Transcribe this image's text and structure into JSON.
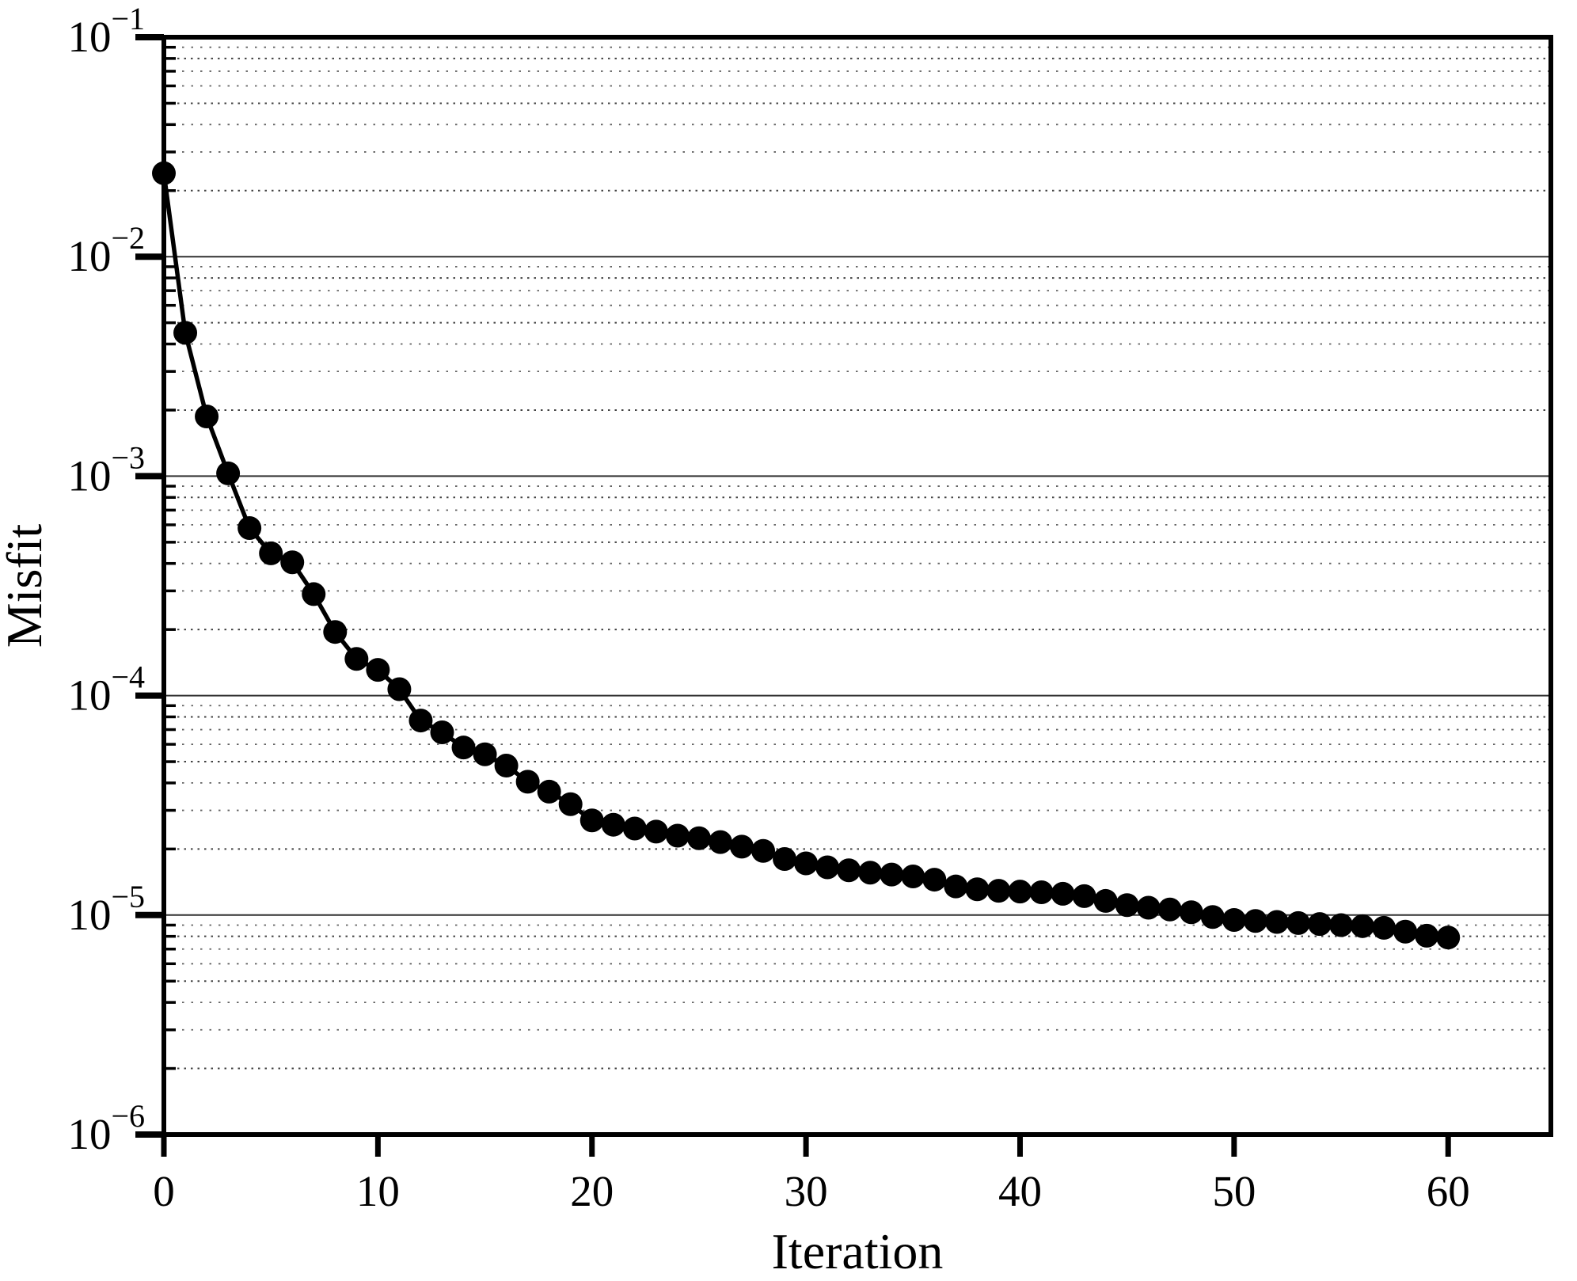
{
  "chart_data": {
    "type": "line",
    "title": "",
    "xlabel": "Iteration",
    "ylabel": "Misfit",
    "legend": "none",
    "x_ticks": [
      0,
      10,
      20,
      30,
      40,
      50,
      60
    ],
    "xlim": [
      0,
      64.8
    ],
    "y_scale": "log",
    "ylim": [
      1e-06,
      0.1
    ],
    "y_tick_base": "10",
    "y_tick_exponents": [
      "−1",
      "−2",
      "−3",
      "−4",
      "−5",
      "−6"
    ],
    "y_decade_exponents": [
      -1,
      -2,
      -3,
      -4,
      -5,
      -6
    ],
    "grid": {
      "horizontal": true,
      "vertical": false,
      "minor_log_lines": true,
      "major_style": "solid",
      "minor_style": "dotted"
    },
    "marker": "filled-circle",
    "marker_color": "#000000",
    "line_color": "#000000",
    "background_color": "#ffffff",
    "series": [
      {
        "name": "misfit-convergence",
        "x": [
          0,
          1,
          2,
          3,
          4,
          5,
          6,
          7,
          8,
          9,
          10,
          11,
          12,
          13,
          14,
          15,
          16,
          17,
          18,
          19,
          20,
          21,
          22,
          23,
          24,
          25,
          26,
          27,
          28,
          29,
          30,
          31,
          32,
          33,
          34,
          35,
          36,
          37,
          38,
          39,
          40,
          41,
          42,
          43,
          44,
          45,
          46,
          47,
          48,
          49,
          50,
          51,
          52,
          53,
          54,
          55,
          56,
          57,
          58,
          59,
          60
        ],
        "y": [
          0.024,
          0.0045,
          0.00187,
          0.00103,
          0.00058,
          0.000445,
          0.000405,
          0.00029,
          0.000195,
          0.000147,
          0.000131,
          0.000107,
          7.7e-05,
          6.8e-05,
          5.8e-05,
          5.4e-05,
          4.8e-05,
          4.05e-05,
          3.65e-05,
          3.2e-05,
          2.7e-05,
          2.58e-05,
          2.48e-05,
          2.4e-05,
          2.3e-05,
          2.24e-05,
          2.15e-05,
          2.05e-05,
          1.96e-05,
          1.8e-05,
          1.72e-05,
          1.65e-05,
          1.6e-05,
          1.56e-05,
          1.53e-05,
          1.5e-05,
          1.45e-05,
          1.35e-05,
          1.31e-05,
          1.29e-05,
          1.28e-05,
          1.27e-05,
          1.25e-05,
          1.22e-05,
          1.16e-05,
          1.11e-05,
          1.08e-05,
          1.06e-05,
          1.03e-05,
          9.8e-06,
          9.5e-06,
          9.4e-06,
          9.3e-06,
          9.2e-06,
          9.1e-06,
          9e-06,
          8.9e-06,
          8.75e-06,
          8.4e-06,
          8.05e-06,
          7.9e-06
        ]
      }
    ]
  }
}
